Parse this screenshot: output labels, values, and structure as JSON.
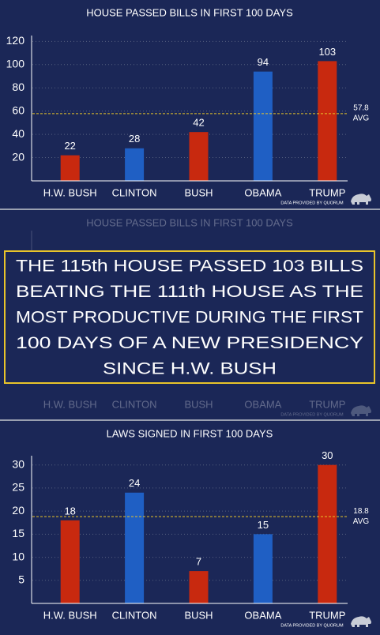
{
  "chart_data": [
    {
      "type": "bar",
      "title": "HOUSE PASSED BILLS IN FIRST 100 DAYS",
      "categories": [
        "H.W. BUSH",
        "CLINTON",
        "BUSH",
        "OBAMA",
        "TRUMP"
      ],
      "values": [
        22,
        28,
        42,
        94,
        103
      ],
      "colors": [
        "#c8290f",
        "#1f5fc4",
        "#c8290f",
        "#1f5fc4",
        "#c8290f"
      ],
      "ylim": [
        0,
        125
      ],
      "yticks": [
        20,
        40,
        60,
        80,
        100,
        120
      ],
      "grid": true,
      "average": {
        "value": 57.8,
        "label": "AVG"
      },
      "source": "DATA PROVIDED BY QUORUM"
    },
    {
      "type": "bar",
      "title": "LAWS SIGNED IN FIRST 100 DAYS",
      "categories": [
        "H.W. BUSH",
        "CLINTON",
        "BUSH",
        "OBAMA",
        "TRUMP"
      ],
      "values": [
        18,
        24,
        7,
        15,
        30
      ],
      "colors": [
        "#c8290f",
        "#1f5fc4",
        "#c8290f",
        "#1f5fc4",
        "#c8290f"
      ],
      "ylim": [
        0,
        32
      ],
      "yticks": [
        5,
        10,
        15,
        20,
        25,
        30
      ],
      "grid": true,
      "average": {
        "value": 18.8,
        "label": "AVG"
      },
      "source": "DATA PROVIDED BY QUORUM"
    }
  ],
  "banner": {
    "lines": [
      "THE 115th HOUSE PASSED 103 BILLS",
      "BEATING THE 111th HOUSE AS THE",
      "MOST PRODUCTIVE DURING THE FIRST",
      "100 DAYS OF A NEW PRESIDENCY",
      "SINCE H.W. BUSH"
    ],
    "faded_title": "HOUSE PASSED BILLS IN FIRST 100 DAYS",
    "faded_categories": [
      "H.W. BUSH",
      "CLINTON",
      "BUSH",
      "OBAMA",
      "TRUMP"
    ],
    "faded_source": "DATA PROVIDED BY QUORUM"
  }
}
